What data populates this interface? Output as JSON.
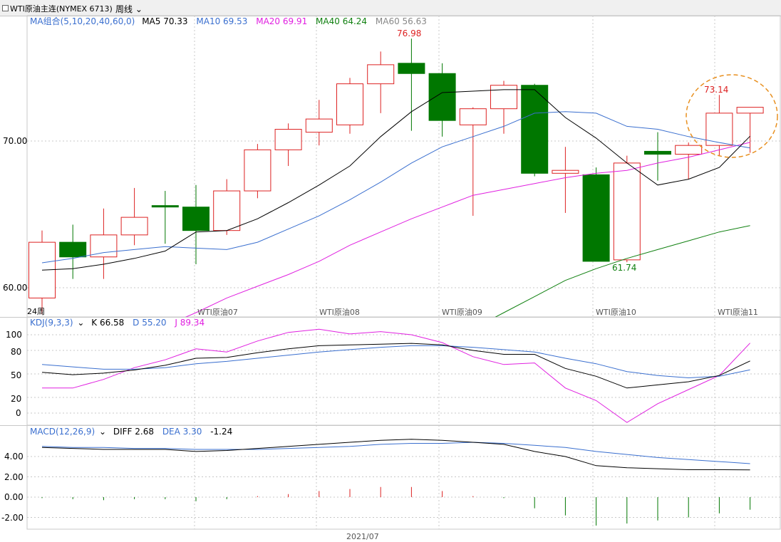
{
  "header": {
    "title": "WTI原油主连(NYMEX 6713)",
    "period_label": "周线"
  },
  "colors": {
    "up": "#dd2222",
    "down": "#007700",
    "ma5": "#000000",
    "ma10": "#3a6fcf",
    "ma20": "#e020e0",
    "ma40": "#108010",
    "k": "#000000",
    "d": "#3a6fcf",
    "j": "#e020e0"
  },
  "chart_data": [
    {
      "type": "candlestick",
      "legend": {
        "name": "MA组合(5,10,20,40,60,0)",
        "items": [
          {
            "label": "MA5 70.33",
            "color": "#000000"
          },
          {
            "label": "MA10 69.53",
            "color": "#3a6fcf"
          },
          {
            "label": "MA20 69.91",
            "color": "#e020e0"
          },
          {
            "label": "MA40 64.24",
            "color": "#108010"
          },
          {
            "label": "MA60 56.63",
            "color": "#888888"
          }
        ]
      },
      "y_ticks": [
        "70.00",
        "60.00"
      ],
      "x_labels": [
        "24周",
        "WTI原油07",
        "WTI原油08",
        "WTI原油09",
        "WTI原油10",
        "WTI原油11"
      ],
      "bottom_label": "2021/07",
      "annotations": [
        {
          "text": "76.98",
          "color": "#dd2222"
        },
        {
          "text": "61.74",
          "color": "#108010"
        },
        {
          "text": "73.14",
          "color": "#dd2222"
        }
      ],
      "candles": [
        {
          "o": 59.3,
          "h": 63.9,
          "l": 58.2,
          "c": 63.1
        },
        {
          "o": 63.1,
          "h": 64.3,
          "l": 60.6,
          "c": 62.1
        },
        {
          "o": 62.1,
          "h": 65.4,
          "l": 60.6,
          "c": 63.6
        },
        {
          "o": 63.6,
          "h": 66.8,
          "l": 62.9,
          "c": 64.8
        },
        {
          "o": 65.6,
          "h": 66.6,
          "l": 63.0,
          "c": 65.5
        },
        {
          "o": 65.5,
          "h": 67.0,
          "l": 61.6,
          "c": 63.9
        },
        {
          "o": 63.9,
          "h": 67.4,
          "l": 63.6,
          "c": 66.6
        },
        {
          "o": 66.6,
          "h": 69.8,
          "l": 66.1,
          "c": 69.4
        },
        {
          "o": 69.4,
          "h": 71.2,
          "l": 68.3,
          "c": 70.8
        },
        {
          "o": 70.6,
          "h": 72.8,
          "l": 69.7,
          "c": 71.5
        },
        {
          "o": 71.1,
          "h": 74.3,
          "l": 70.5,
          "c": 73.9
        },
        {
          "o": 73.9,
          "h": 76.1,
          "l": 71.9,
          "c": 75.2
        },
        {
          "o": 75.3,
          "h": 76.98,
          "l": 70.7,
          "c": 74.6
        },
        {
          "o": 74.6,
          "h": 75.3,
          "l": 70.3,
          "c": 71.4
        },
        {
          "o": 71.1,
          "h": 72.3,
          "l": 64.9,
          "c": 72.2
        },
        {
          "o": 72.2,
          "h": 74.1,
          "l": 70.5,
          "c": 73.8
        },
        {
          "o": 73.8,
          "h": 73.9,
          "l": 67.6,
          "c": 67.8
        },
        {
          "o": 67.8,
          "h": 69.6,
          "l": 65.1,
          "c": 68.0
        },
        {
          "o": 67.7,
          "h": 68.2,
          "l": 61.8,
          "c": 61.8
        },
        {
          "o": 61.9,
          "h": 69.0,
          "l": 61.74,
          "c": 68.5
        },
        {
          "o": 69.3,
          "h": 70.6,
          "l": 67.3,
          "c": 69.1
        },
        {
          "o": 69.1,
          "h": 69.9,
          "l": 67.4,
          "c": 69.7
        },
        {
          "o": 69.7,
          "h": 73.14,
          "l": 69.0,
          "c": 71.9
        },
        {
          "o": 71.9,
          "h": 72.3,
          "l": 69.2,
          "c": 72.3
        }
      ],
      "ma5": [
        61.2,
        61.3,
        61.6,
        62.0,
        62.5,
        63.8,
        63.9,
        64.7,
        65.8,
        67.0,
        68.3,
        70.3,
        72.0,
        73.3,
        73.4,
        73.5,
        73.5,
        71.6,
        70.2,
        68.5,
        67.0,
        67.4,
        68.2,
        70.33
      ],
      "ma10": [
        61.7,
        62.0,
        62.4,
        62.6,
        62.8,
        62.7,
        62.6,
        63.1,
        64.0,
        64.9,
        66.0,
        67.2,
        68.5,
        69.6,
        70.3,
        71.0,
        71.9,
        72.0,
        71.9,
        71.0,
        70.8,
        70.3,
        69.9,
        69.53
      ],
      "ma20": [
        null,
        null,
        null,
        56.6,
        57.4,
        58.3,
        59.3,
        60.1,
        60.9,
        61.8,
        62.9,
        63.8,
        64.7,
        65.5,
        66.3,
        66.7,
        67.1,
        67.5,
        67.8,
        68.0,
        68.5,
        68.9,
        69.4,
        69.91
      ],
      "ma40": [
        null,
        null,
        null,
        null,
        null,
        null,
        null,
        null,
        null,
        null,
        null,
        null,
        null,
        null,
        57.2,
        58.3,
        59.4,
        60.5,
        61.3,
        62.0,
        62.6,
        63.2,
        63.8,
        64.24
      ]
    },
    {
      "type": "line",
      "legend": {
        "name": "KDJ(9,3,3)",
        "items": [
          {
            "label": "K 66.58",
            "color": "#000000"
          },
          {
            "label": "D 55.20",
            "color": "#3a6fcf"
          },
          {
            "label": "J 89.34",
            "color": "#e020e0"
          }
        ]
      },
      "y_ticks": [
        "100",
        "80",
        "50",
        "20",
        "0"
      ],
      "series": [
        {
          "name": "K",
          "values": [
            52,
            49,
            51,
            55,
            61,
            70,
            71,
            77,
            82,
            86,
            87,
            88,
            89,
            87,
            80,
            75,
            75,
            57,
            47,
            32,
            36,
            40,
            48,
            66.58
          ]
        },
        {
          "name": "D",
          "values": [
            62,
            59,
            56,
            56,
            58,
            63,
            66,
            70,
            74,
            78,
            81,
            84,
            86,
            86,
            84,
            81,
            78,
            70,
            63,
            53,
            48,
            45,
            47,
            55.2
          ]
        },
        {
          "name": "J",
          "values": [
            32,
            32,
            43,
            58,
            68,
            82,
            78,
            92,
            103,
            107,
            101,
            104,
            100,
            90,
            72,
            62,
            64,
            32,
            16,
            -12,
            12,
            30,
            48,
            89.34
          ]
        }
      ]
    },
    {
      "type": "bar",
      "legend": {
        "name": "MACD(12,26,9)",
        "items": [
          {
            "label": "DIFF 2.68",
            "color": "#000000"
          },
          {
            "label": "DEA 3.30",
            "color": "#3a6fcf"
          },
          {
            "label": "-1.24",
            "color": "#000000"
          }
        ]
      },
      "y_ticks": [
        "4.00",
        "2.00",
        "0.00",
        "-2.00"
      ],
      "diff": [
        4.9,
        4.8,
        4.7,
        4.7,
        4.7,
        4.5,
        4.6,
        4.8,
        5.0,
        5.2,
        5.4,
        5.6,
        5.7,
        5.6,
        5.4,
        5.2,
        4.5,
        4.0,
        3.1,
        2.9,
        2.8,
        2.7,
        2.7,
        2.68
      ],
      "dea": [
        5.0,
        4.9,
        4.9,
        4.8,
        4.8,
        4.7,
        4.7,
        4.7,
        4.8,
        4.9,
        5.0,
        5.2,
        5.3,
        5.3,
        5.4,
        5.3,
        5.1,
        4.9,
        4.5,
        4.2,
        3.9,
        3.7,
        3.5,
        3.3
      ],
      "macd": [
        -0.1,
        -0.2,
        -0.3,
        -0.2,
        -0.2,
        -0.4,
        -0.2,
        0.1,
        0.3,
        0.6,
        0.8,
        1.0,
        1.0,
        0.6,
        0.1,
        -0.1,
        -1.1,
        -1.8,
        -2.8,
        -2.6,
        -2.3,
        -2.0,
        -1.6,
        -1.24
      ]
    }
  ]
}
